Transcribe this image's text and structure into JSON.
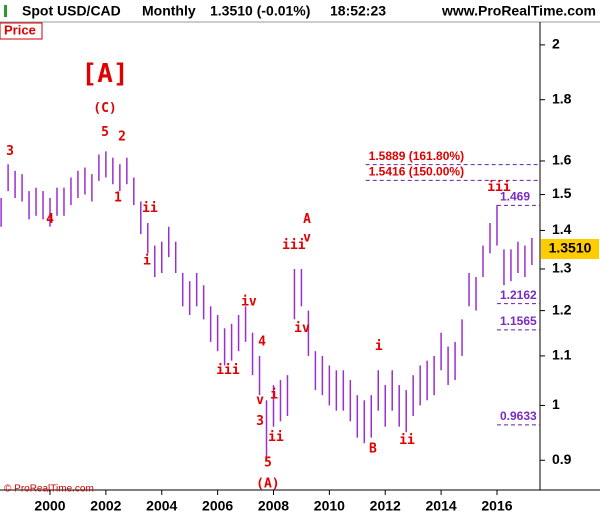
{
  "header": {
    "title": "Spot USD/CAD",
    "period": "Monthly",
    "quote": "1.3510 (-0.01%)",
    "time": "18:52:23",
    "site": "www.ProRealTime.com"
  },
  "panel_label": "Price",
  "footer": "© ProRealTime.com",
  "chart_data": {
    "type": "bar-range",
    "log_scale": true,
    "color": "#9a2fd0",
    "x": [
      1998.25,
      1998.5,
      1998.75,
      1999.0,
      1999.25,
      1999.5,
      1999.75,
      2000.0,
      2000.25,
      2000.5,
      2000.75,
      2001.0,
      2001.25,
      2001.5,
      2001.75,
      2002.0,
      2002.25,
      2002.5,
      2002.75,
      2003.0,
      2003.25,
      2003.5,
      2003.75,
      2004.0,
      2004.25,
      2004.5,
      2004.75,
      2005.0,
      2005.25,
      2005.5,
      2005.75,
      2006.0,
      2006.25,
      2006.5,
      2006.75,
      2007.0,
      2007.25,
      2007.5,
      2007.75,
      2008.0,
      2008.25,
      2008.5,
      2008.75,
      2009.0,
      2009.25,
      2009.5,
      2009.75,
      2010.0,
      2010.25,
      2010.5,
      2010.75,
      2011.0,
      2011.25,
      2011.5,
      2011.75,
      2012.0,
      2012.25,
      2012.5,
      2012.75,
      2013.0,
      2013.25,
      2013.5,
      2013.75,
      2014.0,
      2014.25,
      2014.5,
      2014.75,
      2015.0,
      2015.25,
      2015.5,
      2015.75,
      2016.0,
      2016.25,
      2016.5,
      2016.75,
      2017.0,
      2017.25
    ],
    "high": [
      1.49,
      1.59,
      1.57,
      1.56,
      1.51,
      1.52,
      1.51,
      1.49,
      1.52,
      1.52,
      1.55,
      1.57,
      1.58,
      1.56,
      1.62,
      1.63,
      1.61,
      1.59,
      1.61,
      1.55,
      1.48,
      1.42,
      1.36,
      1.37,
      1.41,
      1.37,
      1.29,
      1.27,
      1.29,
      1.26,
      1.21,
      1.19,
      1.16,
      1.17,
      1.19,
      1.21,
      1.15,
      1.1,
      1.01,
      1.04,
      1.05,
      1.06,
      1.3,
      1.3,
      1.2,
      1.11,
      1.1,
      1.08,
      1.07,
      1.07,
      1.05,
      1.02,
      1.01,
      1.02,
      1.07,
      1.04,
      1.07,
      1.04,
      1.03,
      1.06,
      1.08,
      1.09,
      1.1,
      1.15,
      1.12,
      1.13,
      1.18,
      1.29,
      1.28,
      1.36,
      1.42,
      1.47,
      1.35,
      1.35,
      1.37,
      1.36,
      1.38
    ],
    "low": [
      1.41,
      1.51,
      1.49,
      1.48,
      1.43,
      1.44,
      1.43,
      1.41,
      1.44,
      1.44,
      1.47,
      1.49,
      1.5,
      1.48,
      1.54,
      1.55,
      1.53,
      1.51,
      1.53,
      1.47,
      1.39,
      1.34,
      1.28,
      1.29,
      1.33,
      1.29,
      1.21,
      1.19,
      1.21,
      1.18,
      1.13,
      1.11,
      1.08,
      1.09,
      1.11,
      1.13,
      1.06,
      1.02,
      0.9,
      0.96,
      0.97,
      0.98,
      1.18,
      1.21,
      1.1,
      1.03,
      1.02,
      1.0,
      0.99,
      0.99,
      0.97,
      0.94,
      0.93,
      0.94,
      0.99,
      0.96,
      0.99,
      0.96,
      0.95,
      0.98,
      1.0,
      1.01,
      1.02,
      1.07,
      1.04,
      1.05,
      1.1,
      1.21,
      1.2,
      1.28,
      1.34,
      1.36,
      1.26,
      1.27,
      1.29,
      1.28,
      1.31
    ],
    "xlim": [
      1998.21,
      2017.54
    ],
    "ylim": [
      0.85,
      2.09
    ],
    "xticks": [
      2000,
      2002,
      2004,
      2006,
      2008,
      2010,
      2012,
      2014,
      2016
    ],
    "yticks": [
      0.9,
      1,
      1.1,
      1.2,
      1.3,
      1.4,
      1.5,
      1.6,
      1.8,
      2
    ],
    "last_price": {
      "value": 1.351,
      "label": "1.3510"
    },
    "levels": [
      {
        "value": 1.5889,
        "label": "1.5889 (161.80%)",
        "color": "#e00000",
        "start": 2011.3
      },
      {
        "value": 1.5416,
        "label": "1.5416 (150.00%)",
        "color": "#e00000",
        "start": 2011.3
      },
      {
        "value": 1.469,
        "label": "1.469",
        "color": "#7a2bc0",
        "start": 2016.0
      },
      {
        "value": 1.2162,
        "label": "1.2162",
        "color": "#7a2bc0",
        "start": 2016.0
      },
      {
        "value": 1.1565,
        "label": "1.1565",
        "color": "#7a2bc0",
        "start": 2016.0
      },
      {
        "value": 0.9633,
        "label": "0.9633",
        "color": "#7a2bc0",
        "start": 2016.0
      }
    ],
    "annotations": [
      {
        "text": "[A]",
        "x": 2001.97,
        "y": 1.89
      },
      {
        "text": "(C)",
        "x": 2001.97,
        "y": 1.77
      },
      {
        "text": "5",
        "x": 2001.97,
        "y": 1.69
      },
      {
        "text": "2",
        "x": 2002.58,
        "y": 1.675
      },
      {
        "text": "3",
        "x": 1998.57,
        "y": 1.63
      },
      {
        "text": "4",
        "x": 2000.0,
        "y": 1.43
      },
      {
        "text": "1",
        "x": 2002.43,
        "y": 1.49
      },
      {
        "text": "ii",
        "x": 2003.58,
        "y": 1.46
      },
      {
        "text": "i",
        "x": 2003.47,
        "y": 1.32
      },
      {
        "text": "iv",
        "x": 2007.12,
        "y": 1.22
      },
      {
        "text": "4",
        "x": 2007.59,
        "y": 1.13
      },
      {
        "text": "iii",
        "x": 2006.37,
        "y": 1.07
      },
      {
        "text": "i",
        "x": 2008.02,
        "y": 1.02
      },
      {
        "text": "v",
        "x": 2007.52,
        "y": 1.01
      },
      {
        "text": "3",
        "x": 2007.52,
        "y": 0.97
      },
      {
        "text": "ii",
        "x": 2008.09,
        "y": 0.94
      },
      {
        "text": "5",
        "x": 2007.8,
        "y": 0.895
      },
      {
        "text": "(A)",
        "x": 2007.8,
        "y": 0.86
      },
      {
        "text": "A",
        "x": 2009.2,
        "y": 1.43
      },
      {
        "text": "v",
        "x": 2009.2,
        "y": 1.38
      },
      {
        "text": "iii",
        "x": 2008.73,
        "y": 1.36
      },
      {
        "text": "iv",
        "x": 2009.02,
        "y": 1.16
      },
      {
        "text": "i",
        "x": 2011.77,
        "y": 1.12
      },
      {
        "text": "B",
        "x": 2011.56,
        "y": 0.92
      },
      {
        "text": "ii",
        "x": 2012.78,
        "y": 0.935
      },
      {
        "text": "iii",
        "x": 2016.07,
        "y": 1.52
      }
    ]
  }
}
